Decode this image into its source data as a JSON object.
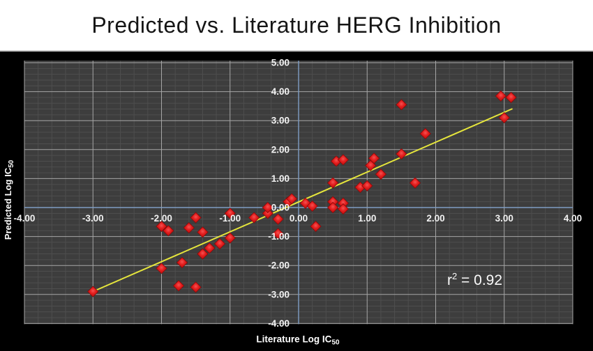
{
  "title": "Predicted vs. Literature HERG Inhibition",
  "colors": {
    "page_bg": "#ffffff",
    "panel_bg": "#000000",
    "plot_bg": "#3d3d3d",
    "minor_grid": "#4e4e4e",
    "major_grid": "#a6a6a6",
    "zero_axis": "#7f9dc4",
    "trend_line": "#e6e63c",
    "point_center": "#f65252",
    "point_mid": "#e21d1d",
    "point_edge": "#b60f0f",
    "point_stroke": "#8c0808",
    "tick_text": "#f2f2f2",
    "title_text": "#151515"
  },
  "chart_data": {
    "type": "scatter",
    "title": "Predicted vs. Literature HERG Inhibition",
    "xlabel": "Literature Log IC50",
    "ylabel": "Predicted Log IC50",
    "xlim": [
      -4,
      4
    ],
    "ylim": [
      -4,
      5
    ],
    "x_ticks": [
      -4,
      -3,
      -2,
      -1,
      0,
      1,
      2,
      3,
      4
    ],
    "x_tick_labels": [
      "-4.00",
      "-3.00",
      "-2.00",
      "-1.00",
      "0.00",
      "1.00",
      "2.00",
      "3.00",
      "4.00"
    ],
    "y_ticks": [
      5,
      4,
      3,
      2,
      1,
      0,
      -1,
      -2,
      -3,
      -4
    ],
    "y_tick_labels": [
      "5.00",
      "4.00",
      "3.00",
      "2.00",
      "1.00",
      "0.00",
      "-1.00",
      "-2.00",
      "-3.00",
      "-4.00"
    ],
    "minor_step": 0.2,
    "grid": "major+minor",
    "legend": "none",
    "marker": "diamond",
    "points": [
      [
        -3.0,
        -2.9
      ],
      [
        -2.0,
        -2.1
      ],
      [
        -1.75,
        -2.7
      ],
      [
        -1.7,
        -1.9
      ],
      [
        -1.5,
        -2.75
      ],
      [
        -2.0,
        -0.65
      ],
      [
        -1.9,
        -0.8
      ],
      [
        -1.6,
        -0.7
      ],
      [
        -1.5,
        -0.35
      ],
      [
        -1.4,
        -0.85
      ],
      [
        -1.4,
        -1.6
      ],
      [
        -1.3,
        -1.4
      ],
      [
        -1.15,
        -1.25
      ],
      [
        -1.0,
        -1.05
      ],
      [
        -1.0,
        -0.2
      ],
      [
        -0.65,
        -0.35
      ],
      [
        -0.45,
        -0.2
      ],
      [
        -0.45,
        0.0
      ],
      [
        -0.3,
        -0.4
      ],
      [
        -0.3,
        -0.9
      ],
      [
        -0.15,
        0.2
      ],
      [
        -0.1,
        0.3
      ],
      [
        0.1,
        0.15
      ],
      [
        0.2,
        0.05
      ],
      [
        0.25,
        -0.65
      ],
      [
        0.5,
        0.2
      ],
      [
        0.65,
        0.15
      ],
      [
        0.5,
        0.0
      ],
      [
        0.65,
        -0.05
      ],
      [
        0.5,
        0.85
      ],
      [
        0.55,
        1.6
      ],
      [
        0.65,
        1.65
      ],
      [
        0.9,
        0.7
      ],
      [
        1.0,
        0.75
      ],
      [
        1.05,
        1.45
      ],
      [
        1.1,
        1.7
      ],
      [
        1.2,
        1.15
      ],
      [
        1.5,
        1.85
      ],
      [
        1.5,
        3.55
      ],
      [
        1.7,
        0.85
      ],
      [
        1.85,
        2.55
      ],
      [
        2.95,
        3.85
      ],
      [
        3.1,
        3.8
      ],
      [
        3.0,
        3.1
      ]
    ],
    "trendline": {
      "x1": -3.0,
      "y1": -2.9,
      "x2": 3.12,
      "y2": 3.41
    },
    "annotation": {
      "text": "r² = 0.92",
      "base": "r",
      "sup": "2",
      "rest": " = 0.92",
      "x": 2.57,
      "y": -2.67
    },
    "r_squared": 0.92,
    "axis_titles": {
      "x_base": "Literature Log IC",
      "x_sub": "50",
      "y_base": "Predicted Log IC",
      "y_sub": "50"
    }
  }
}
